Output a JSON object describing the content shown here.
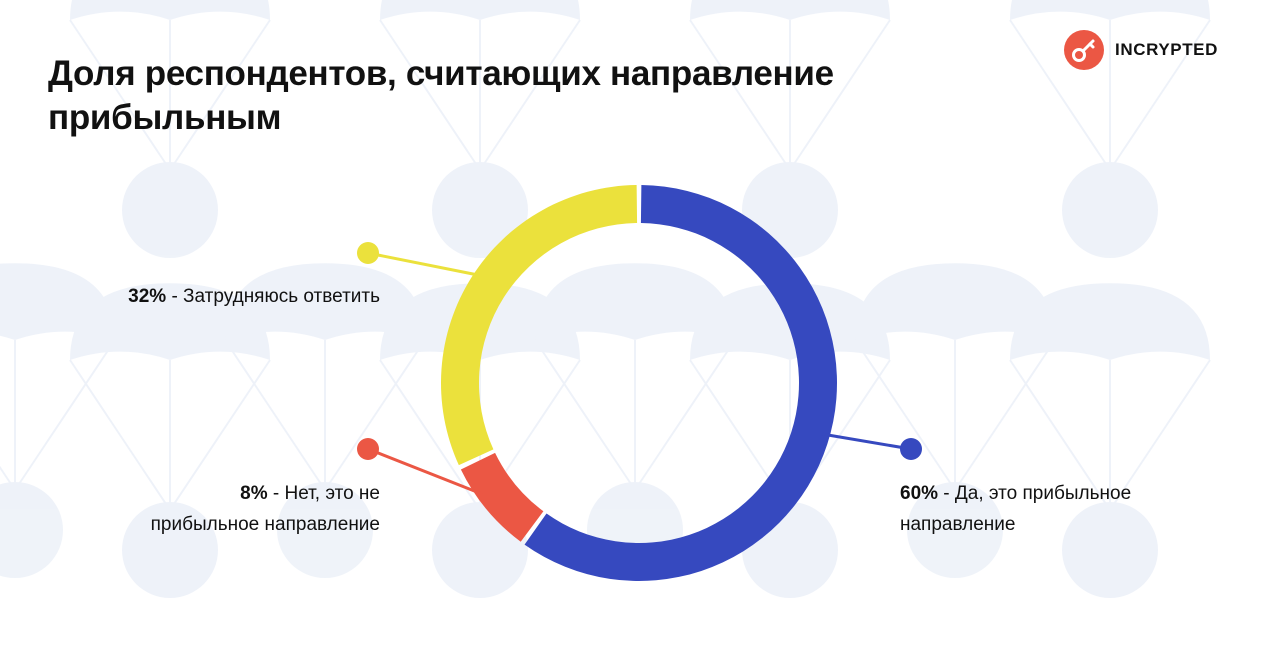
{
  "header": {
    "title": "Доля респондентов, считающих направление прибыльным",
    "brand": "INCRYPTED"
  },
  "colors": {
    "yes": "#3649bf",
    "unsure": "#ebe13c",
    "no": "#eb5744",
    "background_pattern": "#eef2f9",
    "logo": "#eb5744"
  },
  "chart_data": {
    "type": "pie",
    "variant": "donut",
    "title": "Доля респондентов, считающих направление прибыльным",
    "slices": [
      {
        "name": "Да, это прибыльное направление",
        "value": 60,
        "percent_label": "60%",
        "color": "#3649bf",
        "label_side": "right"
      },
      {
        "name": "Нет, это не прибыльное направление",
        "value": 8,
        "percent_label": "8%",
        "color": "#eb5744",
        "label_side": "left"
      },
      {
        "name": "Затрудняюсь ответить",
        "value": 32,
        "percent_label": "32%",
        "color": "#ebe13c",
        "label_side": "left"
      }
    ],
    "labels": [
      {
        "pct": "60%",
        "line1": " - Да, это прибыльное",
        "line2": "направление"
      },
      {
        "pct": "8%",
        "line1": " - Нет, это не",
        "line2": "прибыльное направление"
      },
      {
        "pct": "32%",
        "line1": " - Затрудняюсь ответить"
      }
    ]
  }
}
